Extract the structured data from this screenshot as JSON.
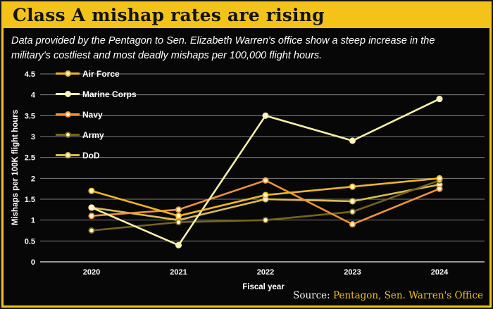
{
  "header": {
    "title": "Class A mishap rates are rising"
  },
  "subtitle": "Data provided by the Pentagon to Sen. Elizabeth Warren's office show a steep increase in the military's costliest and most deadly mishaps per 100,000 flight hours.",
  "footer": {
    "source_label": "Source:",
    "source_value": "Pentagon, Sen. Warren's Office"
  },
  "colors": {
    "frame": "#f3c31a",
    "panel": "#070707",
    "grid": "#7f7f7f",
    "axis": "#f0f0f0",
    "text": "#ffffff",
    "marker_fill": "#fdf3cf",
    "source_accent": "#f0c020"
  },
  "chart_data": {
    "type": "line",
    "title": "Class A mishap rates are rising",
    "xlabel": "Fiscal year",
    "ylabel": "Mishaps per 100K flight hours",
    "categories": [
      "2020",
      "2021",
      "2022",
      "2023",
      "2024"
    ],
    "series": [
      {
        "name": "Air Force",
        "color": "#f0b422",
        "values": [
          1.7,
          1.1,
          1.6,
          1.8,
          2.0
        ]
      },
      {
        "name": "Marine Corps",
        "color": "#f7f0a6",
        "values": [
          1.3,
          0.4,
          3.5,
          2.9,
          3.9
        ]
      },
      {
        "name": "Navy",
        "color": "#ee9338",
        "values": [
          1.1,
          1.25,
          1.95,
          0.9,
          1.75
        ]
      },
      {
        "name": "Army",
        "color": "#77641a",
        "values": [
          0.75,
          0.95,
          1.0,
          1.2,
          1.95
        ]
      },
      {
        "name": "DoD",
        "color": "#d9bd50",
        "values": [
          1.3,
          1.0,
          1.5,
          1.45,
          1.85
        ]
      }
    ],
    "ylim": [
      0,
      4.5
    ],
    "ytick_step": 0.5,
    "grid": true,
    "legend_position": "upper-left"
  }
}
